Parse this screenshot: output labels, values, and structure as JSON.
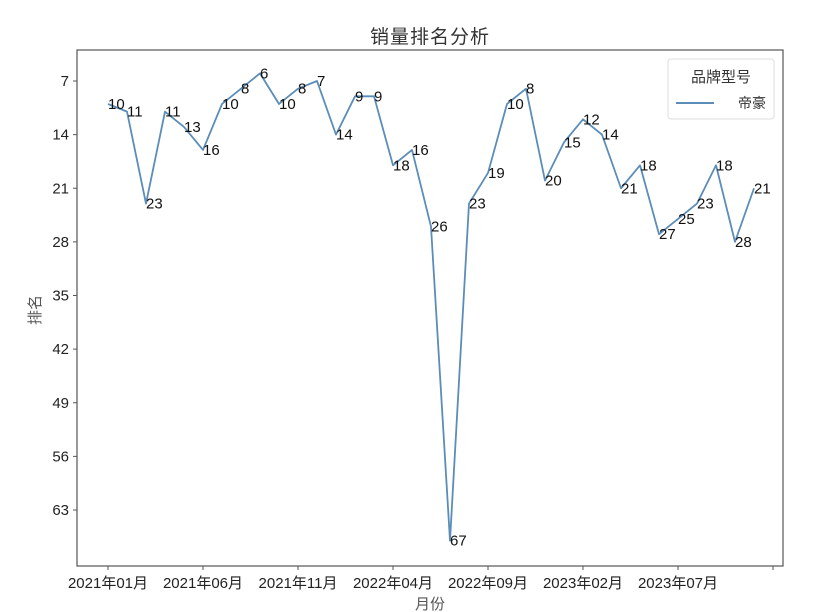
{
  "chart_data": {
    "type": "line",
    "title": "销量排名分析",
    "xlabel": "月份",
    "ylabel": "排名",
    "y_inverted": true,
    "ylim": [
      3,
      70
    ],
    "yticks": [
      7,
      14,
      21,
      28,
      35,
      42,
      49,
      56,
      63
    ],
    "xtick_labels": [
      "2021年01月",
      "2021年06月",
      "2021年11月",
      "2022年04月",
      "2022年09月",
      "2023年02月",
      "2023年07月",
      ""
    ],
    "grid": false,
    "legend": {
      "title": "品牌型号",
      "position": "upper right",
      "entries": [
        "帝豪"
      ]
    },
    "x": [
      "2021-01",
      "2021-02",
      "2021-03",
      "2021-04",
      "2021-05",
      "2021-06",
      "2021-07",
      "2021-08",
      "2021-09",
      "2021-10",
      "2021-11",
      "2021-12",
      "2022-01",
      "2022-02",
      "2022-03",
      "2022-04",
      "2022-05",
      "2022-06",
      "2022-07",
      "2022-08",
      "2022-09",
      "2022-10",
      "2022-11",
      "2022-12",
      "2023-01",
      "2023-02",
      "2023-03",
      "2023-04",
      "2023-05",
      "2023-06",
      "2023-07",
      "2023-08",
      "2023-09",
      "2023-10",
      "2023-11"
    ],
    "series": [
      {
        "name": "帝豪",
        "color": "#5b8db8",
        "values": [
          10,
          11,
          23,
          11,
          13,
          16,
          10,
          8,
          6,
          10,
          8,
          7,
          14,
          9,
          9,
          18,
          16,
          26,
          67,
          23,
          19,
          10,
          8,
          20,
          15,
          12,
          14,
          21,
          18,
          27,
          25,
          23,
          18,
          28,
          21
        ]
      }
    ]
  },
  "colors": {
    "line": "#5b8db8",
    "axis": "#555555"
  }
}
